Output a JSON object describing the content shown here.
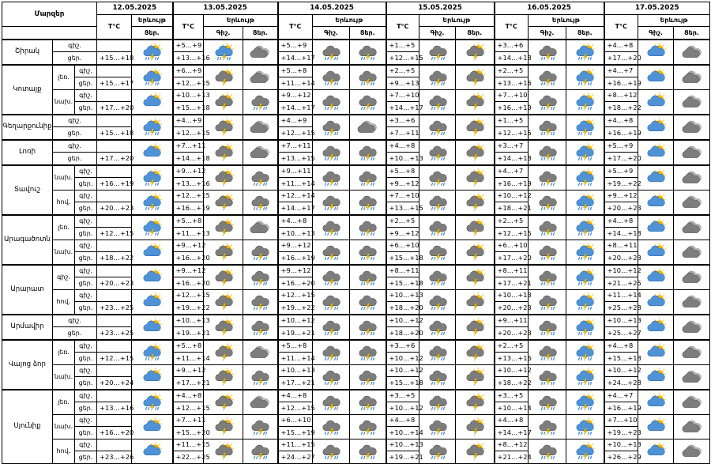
{
  "table": {
    "region_header": "Մարզեր",
    "temp_header": "T°C",
    "phen_header": "Երևույթ",
    "day_label": "Ցեր.",
    "night_label": "Գիշ.",
    "dates": [
      "12.05.2025",
      "13.05.2025",
      "14.05.2025",
      "15.05.2025",
      "16.05.2025",
      "17.05.2025"
    ],
    "rows": [
      {
        "region": "Շիրակ",
        "span": 2,
        "sub": "",
        "sspan": 1,
        "tod": "գիշ.",
        "cells": [
          "",
          "+5…+9",
          "+5…+9",
          "+1…+5",
          "+3…+6",
          "+4…+8"
        ],
        "icons": [
          "pc_storm_rain",
          "pc_storm_rain",
          "overcast",
          "storm_rain",
          "storm_rain",
          "storm_rain",
          "cloudy_storm",
          "storm_rain",
          "pc_storm_rain",
          "partly_cloudy",
          "overcast",
          "partly_cloudy"
        ]
      },
      {
        "tod": "ցեր.",
        "cells": [
          "+15…+18",
          "+13…+16",
          "+14…+17",
          "+12…+15",
          "+14…+18",
          "+17…+20"
        ],
        "icons": []
      },
      {
        "region": "Կոտայք",
        "span": 4,
        "sub": "լեռ.",
        "sspan": 2,
        "tod": "գիշ.",
        "cells": [
          "",
          "+6…+9",
          "+5…+8",
          "+2…+5",
          "+2…+5",
          "+4…+7"
        ],
        "icons": [
          "pc_storm_rain",
          "cloudy_storm",
          "overcast",
          "storm_rain",
          "storm_rain",
          "storm_rain",
          "cloudy_storm",
          "storm_rain",
          "pc_storm_rain",
          "partly_cloudy",
          "overcast",
          "partly_cloudy"
        ]
      },
      {
        "tod": "ցեր.",
        "cells": [
          "+15…+17",
          "+12…+15",
          "+11…+14",
          "+9…+13",
          "+13…+16",
          "+16…+19"
        ],
        "icons": []
      },
      {
        "sub": "նախ.",
        "sspan": 2,
        "tod": "գիշ.",
        "cells": [
          "",
          "+10…+13",
          "+9…+12",
          "+7…+10",
          "+7…+10",
          "+8…+12"
        ],
        "icons": [
          "partly_cloudy",
          "cloudy_storm",
          "storm_rain",
          "storm_rain",
          "storm_rain",
          "storm_rain",
          "cloudy_storm",
          "storm_rain",
          "pc_storm_rain",
          "partly_cloudy",
          "overcast",
          "partly_cloudy"
        ]
      },
      {
        "tod": "ցեր.",
        "cells": [
          "+17…+20",
          "+15…+18",
          "+14…+17",
          "+14…+17",
          "+16…+19",
          "+18…+22"
        ],
        "icons": []
      },
      {
        "region": "Գեղարքունիք",
        "span": 2,
        "sub": "",
        "sspan": 1,
        "tod": "գիշ.",
        "cells": [
          "",
          "+4…+9",
          "+4…+9",
          "+3…+6",
          "+1…+5",
          "+4…+8"
        ],
        "icons": [
          "pc_storm_rain",
          "cloudy_storm",
          "overcast",
          "storm_rain",
          "overcast",
          "storm_rain",
          "cloudy_storm",
          "storm_rain",
          "pc_storm_rain",
          "partly_cloudy",
          "overcast",
          "partly_cloudy"
        ]
      },
      {
        "tod": "ցեր.",
        "cells": [
          "+15…+18",
          "+12…+15",
          "+12…+15",
          "+7…+11",
          "+12…+15",
          "+16…+19"
        ],
        "icons": []
      },
      {
        "region": "Լոռի",
        "span": 2,
        "sub": "",
        "sspan": 1,
        "tod": "գիշ.",
        "cells": [
          "",
          "+7…+11",
          "+7…+11",
          "+4…+8",
          "+3…+7",
          "+5…+9"
        ],
        "icons": [
          "partly_cloudy",
          "cloudy_storm",
          "overcast",
          "storm_rain",
          "storm_rain",
          "storm_rain",
          "cloudy_storm",
          "storm_rain",
          "pc_storm_rain",
          "partly_cloudy",
          "overcast",
          "partly_cloudy"
        ]
      },
      {
        "tod": "ցեր.",
        "cells": [
          "+17…+20",
          "+14…+18",
          "+13…+15",
          "+10…+13",
          "+14…+18",
          "+17…+20"
        ],
        "icons": []
      },
      {
        "region": "Տավուշ",
        "span": 4,
        "sub": "նախ.",
        "sspan": 2,
        "tod": "գիշ.",
        "cells": [
          "",
          "+9…+12",
          "+9…+11",
          "+5…+8",
          "+4…+7",
          "+5…+9"
        ],
        "icons": [
          "pc_storm_rain",
          "cloudy_storm",
          "storm_rain",
          "storm_rain",
          "storm_rain",
          "storm_rain",
          "cloudy_storm",
          "storm_rain",
          "pc_storm_rain",
          "partly_cloudy",
          "overcast",
          "partly_cloudy"
        ]
      },
      {
        "tod": "ցեր.",
        "cells": [
          "+16…+19",
          "+13…+16",
          "+11…+14",
          "+9…+12",
          "+16…+19",
          "+19…+22"
        ],
        "icons": []
      },
      {
        "sub": "հով.",
        "sspan": 2,
        "tod": "գիշ.",
        "cells": [
          "",
          "+12…+15",
          "+12…+14",
          "+7…+10",
          "+10…+12",
          "+9…+12"
        ],
        "icons": [
          "pc_storm_rain",
          "cloudy_storm",
          "storm_rain",
          "storm_rain",
          "storm_rain",
          "storm_rain",
          "cloudy_storm",
          "storm_rain",
          "pc_storm_rain",
          "partly_cloudy",
          "overcast",
          "partly_cloudy"
        ]
      },
      {
        "tod": "ցեր.",
        "cells": [
          "+20…+23",
          "+16…+19",
          "+14…+17",
          "+13…+15",
          "+18…+21",
          "+20…+23"
        ],
        "icons": []
      },
      {
        "region": "Արագածոտն",
        "span": 4,
        "sub": "լեռ.",
        "sspan": 2,
        "tod": "գիշ.",
        "cells": [
          "",
          "+5…+8",
          "+4…+8",
          "+2…+5",
          "+2…+5",
          "+4…+8"
        ],
        "icons": [
          "pc_storm_rain",
          "cloudy_storm",
          "overcast",
          "storm_rain",
          "storm_rain",
          "storm_rain",
          "cloudy_storm",
          "storm_rain",
          "pc_storm_rain",
          "partly_cloudy",
          "overcast",
          "partly_cloudy"
        ]
      },
      {
        "tod": "ցեր.",
        "cells": [
          "+12…+15",
          "+11…+13",
          "+10…+13",
          "+9…+12",
          "+12…+15",
          "+14…+18"
        ],
        "icons": []
      },
      {
        "sub": "նախ.",
        "sspan": 2,
        "tod": "գիշ.",
        "cells": [
          "",
          "+9…+12",
          "+9…+12",
          "+6…+10",
          "+6…+10",
          "+8…+11"
        ],
        "icons": [
          "partly_cloudy",
          "cloudy_storm",
          "storm_rain",
          "storm_rain",
          "storm_rain",
          "storm_rain",
          "cloudy_storm",
          "storm_rain",
          "pc_storm_rain",
          "partly_cloudy",
          "overcast",
          "partly_cloudy"
        ]
      },
      {
        "tod": "ցեր.",
        "cells": [
          "+18…+22",
          "+16…+20",
          "+16…+19",
          "+15…+18",
          "+17…+20",
          "+20…+23"
        ],
        "icons": []
      },
      {
        "region": "Արարատ",
        "span": 4,
        "sub": "գիշ.",
        "sspan": 2,
        "tod": "գիշ.",
        "cells": [
          "",
          "+9…+12",
          "+9…+12",
          "+8…+11",
          "+8…+11",
          "+10…+12"
        ],
        "icons": [
          "partly_cloudy",
          "cloudy_storm",
          "storm_rain",
          "storm_rain",
          "storm_rain",
          "storm_rain",
          "cloudy_storm",
          "storm_rain",
          "pc_storm_rain",
          "partly_cloudy",
          "overcast",
          "partly_cloudy"
        ]
      },
      {
        "tod": "ցեր.",
        "cells": [
          "+20…+23",
          "+16…+20",
          "+16…+20",
          "+15…+18",
          "+17…+21",
          "+21…+25"
        ],
        "icons": []
      },
      {
        "sub": "հով.",
        "sspan": 2,
        "tod": "գիշ.",
        "cells": [
          "",
          "+12…+15",
          "+12…+15",
          "+10…+13",
          "+10…+13",
          "+11…+14"
        ],
        "icons": [
          "partly_cloudy",
          "cloudy_storm",
          "storm_rain",
          "storm_rain",
          "storm_rain",
          "storm_rain",
          "cloudy_storm",
          "storm_rain",
          "pc_storm_rain",
          "partly_cloudy",
          "overcast",
          "partly_cloudy"
        ]
      },
      {
        "tod": "ցեր.",
        "cells": [
          "+23…+25",
          "+19…+22",
          "+19…+22",
          "+18…+20",
          "+20…+23",
          "+25…+28"
        ],
        "icons": []
      },
      {
        "region": "Արմավիր",
        "span": 2,
        "sub": "",
        "sspan": 1,
        "tod": "գիշ.",
        "cells": [
          "",
          "+10…+13",
          "+10…+12",
          "+10…+12",
          "+9…+11",
          "+10…+13"
        ],
        "icons": [
          "partly_cloudy",
          "cloudy_storm",
          "storm_rain",
          "storm_rain",
          "storm_rain",
          "storm_rain",
          "cloudy_storm",
          "storm_rain",
          "pc_storm_rain",
          "partly_cloudy",
          "overcast",
          "partly_cloudy"
        ]
      },
      {
        "tod": "ցեր.",
        "cells": [
          "+23…+25",
          "+19…+21",
          "+19…+21",
          "+18…+20",
          "+20…+23",
          "+25…+27"
        ],
        "icons": []
      },
      {
        "region": "Վայոց ձոր",
        "span": 4,
        "sub": "լեռ.",
        "sspan": 2,
        "tod": "գիշ.",
        "cells": [
          "",
          "+5…+8",
          "+5…+8",
          "+3…+6",
          "+2…+5",
          "+4…+8"
        ],
        "icons": [
          "pc_storm_rain",
          "cloudy_storm",
          "overcast",
          "storm_rain",
          "storm_rain",
          "storm_rain",
          "cloudy_storm",
          "storm_rain",
          "pc_storm_rain",
          "partly_cloudy",
          "overcast",
          "partly_cloudy"
        ]
      },
      {
        "tod": "ցեր.",
        "cells": [
          "+12…+15",
          "+11…+14",
          "+11…+14",
          "+10…+12",
          "+13…+16",
          "+15…+18"
        ],
        "icons": []
      },
      {
        "sub": "նախ.",
        "sspan": 2,
        "tod": "գիշ.",
        "cells": [
          "",
          "+9…+12",
          "+10…+13",
          "+10…+12",
          "+10…+12",
          "+10…+12"
        ],
        "icons": [
          "partly_cloudy",
          "cloudy_storm",
          "storm_rain",
          "storm_rain",
          "storm_rain",
          "storm_rain",
          "cloudy_storm",
          "storm_rain",
          "pc_storm_rain",
          "partly_cloudy",
          "overcast",
          "partly_cloudy"
        ]
      },
      {
        "tod": "ցեր.",
        "cells": [
          "+20…+24",
          "+17…+21",
          "+17…+21",
          "+15…+18",
          "+18…+22",
          "+24…+28"
        ],
        "icons": []
      },
      {
        "region": "Սյունիք",
        "span": 6,
        "sub": "լեռ.",
        "sspan": 2,
        "tod": "գիշ.",
        "cells": [
          "",
          "+4…+8",
          "+4…+8",
          "+3…+5",
          "+3…+5",
          "+4…+7"
        ],
        "icons": [
          "pc_storm_rain",
          "cloudy_storm",
          "overcast",
          "storm_rain",
          "storm_rain",
          "storm_rain",
          "cloudy_storm",
          "storm_rain",
          "pc_storm_rain",
          "partly_cloudy",
          "overcast",
          "partly_cloudy"
        ]
      },
      {
        "tod": "ցեր.",
        "cells": [
          "+13…+16",
          "+12…+15",
          "+12…+15",
          "+10…+12",
          "+10…+14",
          "+16…+19"
        ],
        "icons": []
      },
      {
        "sub": "նախ.",
        "sspan": 2,
        "tod": "գիշ.",
        "cells": [
          "",
          "+7…+11",
          "+6…+10",
          "+4…+8",
          "+4…+8",
          "+7…+10"
        ],
        "icons": [
          "partly_cloudy",
          "cloudy_storm",
          "storm_rain",
          "storm_rain",
          "storm_rain",
          "storm_rain",
          "cloudy_storm",
          "storm_rain",
          "pc_storm_rain",
          "partly_cloudy",
          "overcast",
          "partly_cloudy"
        ]
      },
      {
        "tod": "ցեր.",
        "cells": [
          "+16…+20",
          "+15…+20",
          "+15…+19",
          "+10…+14",
          "+14…+17",
          "+19…+23"
        ],
        "icons": []
      },
      {
        "sub": "հով.",
        "sspan": 2,
        "tod": "գիշ.",
        "cells": [
          "",
          "+11…+15",
          "+11…+15",
          "+10…+13",
          "+8…+12",
          "+10…+13"
        ],
        "icons": [
          "partly_cloudy",
          "cloudy_storm",
          "storm_rain",
          "storm_rain",
          "storm_rain",
          "storm_rain",
          "cloudy_storm",
          "storm_rain",
          "pc_storm_rain",
          "partly_cloudy",
          "overcast",
          "partly_cloudy"
        ]
      },
      {
        "tod": "ցեր.",
        "cells": [
          "+23…+26",
          "+22…+25",
          "+24…+27",
          "+19…+21",
          "+21…+24",
          "+26…+29"
        ],
        "icons": []
      }
    ]
  }
}
